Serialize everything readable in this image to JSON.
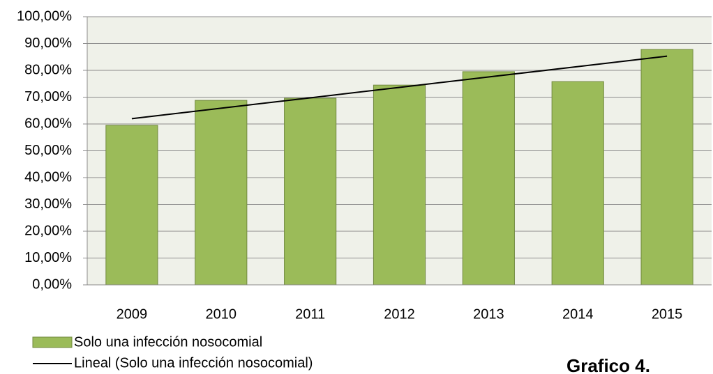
{
  "chart_data": {
    "type": "bar",
    "categories": [
      "2009",
      "2010",
      "2011",
      "2012",
      "2013",
      "2014",
      "2015"
    ],
    "series": [
      {
        "name": "Solo una infección nosocomial",
        "type": "bar",
        "color": "#9bbb59",
        "values": [
          59.5,
          68.8,
          69.6,
          74.5,
          79.5,
          75.8,
          87.8
        ]
      },
      {
        "name": "Lineal (Solo una infección nosocomial)",
        "type": "line",
        "color": "#000000",
        "values": [
          61.98,
          65.87,
          69.75,
          73.64,
          77.53,
          81.41,
          85.3
        ]
      }
    ],
    "ylim": [
      0,
      100
    ],
    "yticks": [
      {
        "value": 0,
        "label": "0,00%"
      },
      {
        "value": 10,
        "label": "10,00%"
      },
      {
        "value": 20,
        "label": "20,00%"
      },
      {
        "value": 30,
        "label": "30,00%"
      },
      {
        "value": 40,
        "label": "40,00%"
      },
      {
        "value": 50,
        "label": "50,00%"
      },
      {
        "value": 60,
        "label": "60,00%"
      },
      {
        "value": 70,
        "label": "70,00%"
      },
      {
        "value": 80,
        "label": "80,00%"
      },
      {
        "value": 90,
        "label": "90,00%"
      },
      {
        "value": 100,
        "label": "100,00%"
      }
    ],
    "grid": true,
    "legend": "bottom-left",
    "annotation": "Grafico 4."
  }
}
